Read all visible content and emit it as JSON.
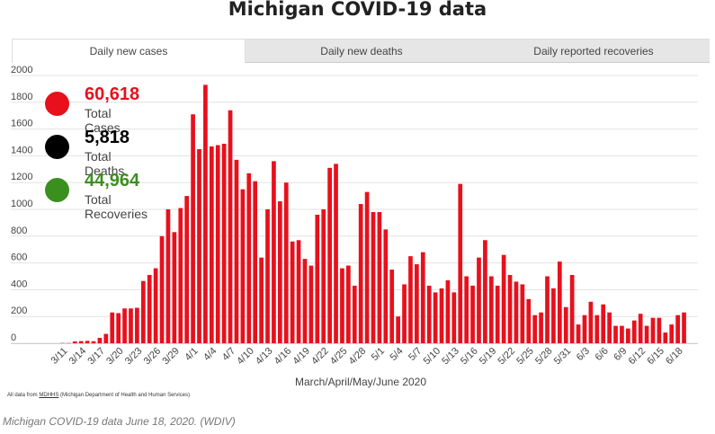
{
  "title": "Michigan COVID-19 data",
  "tabs": [
    {
      "label": "Daily new cases",
      "active": true
    },
    {
      "label": "Daily new deaths",
      "active": false
    },
    {
      "label": "Daily reported recoveries",
      "active": false
    }
  ],
  "stats": [
    {
      "value": "60,618",
      "label": "Total Cases",
      "color": "#e8101c"
    },
    {
      "value": "5,818",
      "label": "Total Deaths",
      "color": "#000000"
    },
    {
      "value": "44,964",
      "label": "Total Recoveries",
      "color": "#3b8f1f"
    }
  ],
  "source_prefix": "All data from ",
  "source_link": "MDHHS",
  "source_suffix": " (Michigan Department of Health and Human Services)",
  "caption": "Michigan COVID-19 data June 18, 2020. (WDIV)",
  "chart_data": {
    "type": "bar",
    "xlabel": "March/April/May/June 2020",
    "ylabel": "",
    "ylim": [
      0,
      2000
    ],
    "yticks": [
      0,
      200,
      400,
      600,
      800,
      1000,
      1200,
      1400,
      1600,
      1800,
      2000
    ],
    "bar_color": "#e8101c",
    "tick_labels": [
      "3/11",
      "3/14",
      "3/17",
      "3/20",
      "3/23",
      "3/26",
      "3/29",
      "4/1",
      "4/4",
      "4/7",
      "4/10",
      "4/13",
      "4/16",
      "4/19",
      "4/22",
      "4/25",
      "4/28",
      "5/1",
      "5/4",
      "5/7",
      "5/10",
      "5/13",
      "5/16",
      "5/19",
      "5/22",
      "5/25",
      "5/28",
      "5/31",
      "6/3",
      "6/6",
      "6/9",
      "6/12",
      "6/15",
      "6/18"
    ],
    "values": [
      2,
      2,
      14,
      16,
      18,
      15,
      40,
      70,
      230,
      225,
      260,
      260,
      265,
      465,
      510,
      560,
      800,
      1000,
      830,
      1010,
      1100,
      1710,
      1450,
      1930,
      1470,
      1480,
      1490,
      1740,
      1370,
      1150,
      1270,
      1210,
      640,
      1000,
      1360,
      1060,
      1200,
      760,
      770,
      630,
      580,
      960,
      1000,
      1310,
      1340,
      560,
      580,
      430,
      1040,
      1130,
      980,
      980,
      850,
      550,
      200,
      440,
      650,
      590,
      680,
      430,
      380,
      410,
      470,
      380,
      1190,
      500,
      430,
      640,
      770,
      500,
      430,
      660,
      510,
      460,
      440,
      330,
      210,
      230,
      500,
      410,
      610,
      270,
      510,
      140,
      210,
      310,
      210,
      290,
      230,
      130,
      130,
      110,
      170,
      220,
      130,
      190,
      190,
      80,
      140,
      210,
      230
    ]
  }
}
